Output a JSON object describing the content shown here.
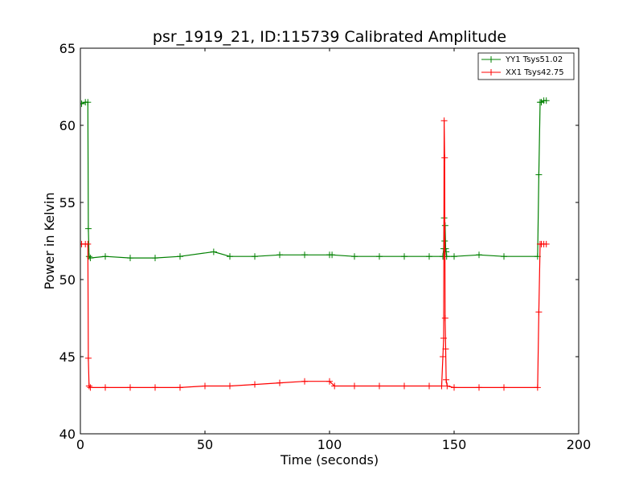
{
  "chart_data": {
    "type": "line",
    "title": "psr_1919_21, ID:115739 Calibrated Amplitude",
    "xlabel": "Time (seconds)",
    "ylabel": "Power in Kelvin",
    "xlim": [
      0,
      200
    ],
    "ylim": [
      40,
      65
    ],
    "xticks": [
      0,
      50,
      100,
      150,
      200
    ],
    "yticks": [
      40,
      45,
      50,
      55,
      60,
      65
    ],
    "grid": false,
    "legend_position": "top-right",
    "series": [
      {
        "name": "YY1 Tsys51.02",
        "color": "#008000",
        "marker": "+",
        "x": [
          0.5,
          2.0,
          3.0,
          3.2,
          3.5,
          4.0,
          10,
          20,
          30,
          40,
          53.5,
          60,
          70,
          80,
          90,
          100,
          101,
          110,
          120,
          130,
          140,
          145.5,
          145.8,
          146.0,
          146.2,
          146.4,
          146.6,
          146.8,
          147.0,
          150,
          160,
          170,
          183.5,
          184.0,
          184.5,
          185,
          186,
          187
        ],
        "y": [
          61.4,
          61.5,
          61.5,
          53.3,
          51.5,
          51.4,
          51.5,
          51.4,
          51.4,
          51.5,
          51.8,
          51.5,
          51.5,
          51.6,
          51.6,
          51.6,
          51.6,
          51.5,
          51.5,
          51.5,
          51.5,
          51.5,
          52.0,
          54.0,
          52.5,
          53.5,
          52.0,
          51.8,
          51.5,
          51.5,
          51.6,
          51.5,
          51.5,
          56.8,
          61.5,
          61.5,
          61.6,
          61.6
        ]
      },
      {
        "name": "XX1 Tsys42.75",
        "color": "#ff0000",
        "marker": "+",
        "x": [
          0.5,
          2.0,
          3.0,
          3.2,
          3.5,
          4.0,
          10,
          20,
          30,
          40,
          50,
          60,
          70,
          80,
          90,
          100,
          102,
          110,
          120,
          130,
          140,
          145.0,
          145.5,
          145.8,
          146.0,
          146.2,
          146.4,
          146.6,
          146.8,
          147.2,
          150,
          160,
          170,
          183.5,
          184.0,
          184.5,
          185,
          186,
          187
        ],
        "y": [
          52.3,
          52.3,
          52.3,
          44.9,
          43.1,
          43.0,
          43.0,
          43.0,
          43.0,
          43.0,
          43.1,
          43.1,
          43.2,
          43.3,
          43.4,
          43.4,
          43.1,
          43.1,
          43.1,
          43.1,
          43.1,
          43.1,
          45.0,
          46.2,
          60.3,
          57.9,
          47.5,
          45.5,
          43.5,
          43.1,
          43.0,
          43.0,
          43.0,
          43.0,
          47.9,
          52.3,
          52.3,
          52.3,
          52.3
        ]
      }
    ]
  }
}
